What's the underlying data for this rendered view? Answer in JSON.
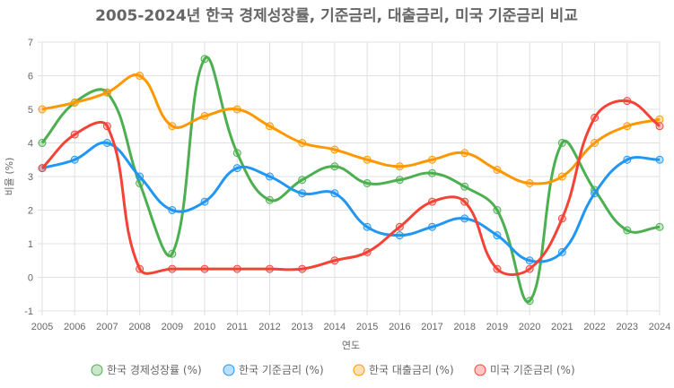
{
  "chart_data": {
    "type": "line",
    "title": "2005-2024년 한국 경제성장률, 기준금리, 대출금리, 미국 기준금리 비교",
    "xlabel": "연도",
    "ylabel": "비율 (%)",
    "ylim": [
      -1,
      7
    ],
    "yticks": [
      -1,
      0,
      1,
      2,
      3,
      4,
      5,
      6,
      7
    ],
    "grid": true,
    "legend_position": "bottom",
    "x": [
      "2005",
      "2006",
      "2007",
      "2008",
      "2009",
      "2010",
      "2011",
      "2012",
      "2013",
      "2014",
      "2015",
      "2016",
      "2017",
      "2018",
      "2019",
      "2020",
      "2021",
      "2022",
      "2023",
      "2024"
    ],
    "series": [
      {
        "name": "한국 경제성장률 (%)",
        "color": "#4caf50",
        "values": [
          4.0,
          5.2,
          5.5,
          2.8,
          0.7,
          6.5,
          3.7,
          2.3,
          2.9,
          3.3,
          2.8,
          2.9,
          3.1,
          2.7,
          2.0,
          -0.7,
          4.0,
          2.6,
          1.4,
          1.5
        ]
      },
      {
        "name": "한국 기준금리 (%)",
        "color": "#2196f3",
        "values": [
          3.25,
          3.5,
          4.0,
          3.0,
          2.0,
          2.25,
          3.25,
          3.0,
          2.5,
          2.5,
          1.5,
          1.25,
          1.5,
          1.75,
          1.25,
          0.5,
          0.75,
          2.5,
          3.5,
          3.5
        ]
      },
      {
        "name": "한국 대출금리 (%)",
        "color": "#ff9800",
        "values": [
          5.0,
          5.2,
          5.5,
          6.0,
          4.5,
          4.8,
          5.0,
          4.5,
          4.0,
          3.8,
          3.5,
          3.3,
          3.5,
          3.7,
          3.2,
          2.8,
          3.0,
          4.0,
          4.5,
          4.7
        ]
      },
      {
        "name": "미국 기준금리 (%)",
        "color": "#f44336",
        "values": [
          3.25,
          4.25,
          4.5,
          0.25,
          0.25,
          0.25,
          0.25,
          0.25,
          0.25,
          0.5,
          0.75,
          1.5,
          2.25,
          2.25,
          0.25,
          0.25,
          1.75,
          4.75,
          5.25,
          4.5
        ]
      }
    ]
  }
}
